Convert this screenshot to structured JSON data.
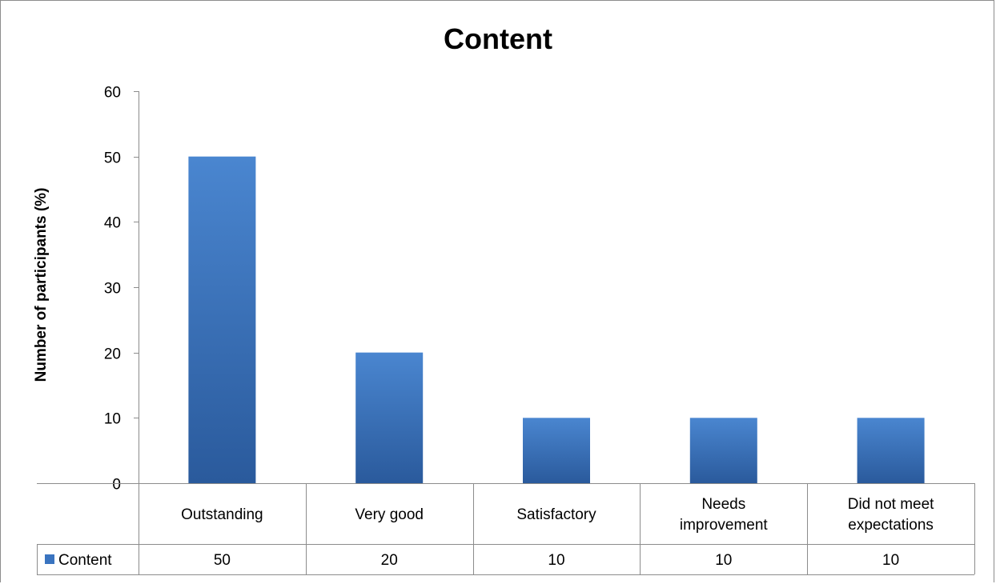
{
  "chart_data": {
    "type": "bar",
    "title": "Content",
    "xlabel": "",
    "ylabel": "Number of participants (%)",
    "categories": [
      "Outstanding",
      "Very good",
      "Satisfactory",
      "Needs improvement",
      "Did not meet expectations"
    ],
    "series": [
      {
        "name": "Content",
        "values": [
          50,
          20,
          10,
          10,
          10
        ]
      }
    ],
    "ylim": [
      0,
      60
    ],
    "yticks": [
      0,
      10,
      20,
      30,
      40,
      50,
      60
    ],
    "grid": false,
    "legend": "data-table",
    "data_table": true,
    "colors": {
      "bar_top": "#4a86d0",
      "bar_bottom": "#2a5a9c",
      "axis": "#8c8c8c"
    }
  }
}
